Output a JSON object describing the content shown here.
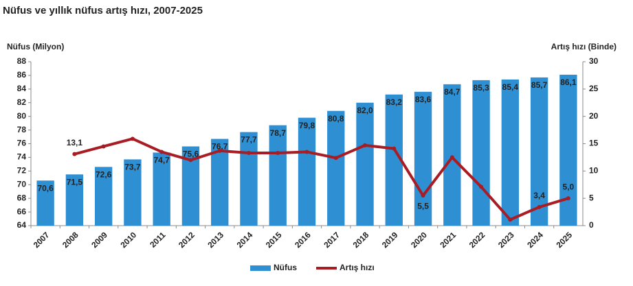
{
  "chart_data": {
    "type": "bar-line",
    "title": "Nüfus ve yıllık nüfus artış hızı, 2007-2025",
    "y_label": "Nüfus (Milyon)",
    "y2_label": "Artış hızı (Binde)",
    "categories": [
      "2007",
      "2008",
      "2009",
      "2010",
      "2011",
      "2012",
      "2013",
      "2014",
      "2015",
      "2016",
      "2017",
      "2018",
      "2019",
      "2020",
      "2021",
      "2022",
      "2023",
      "2024",
      "2025"
    ],
    "series": [
      {
        "name": "Nüfus",
        "type": "bar",
        "color": "#2f8fd3",
        "values": [
          70.6,
          71.5,
          72.6,
          73.7,
          74.7,
          75.6,
          76.7,
          77.7,
          78.7,
          79.8,
          80.8,
          82.0,
          83.2,
          83.6,
          84.7,
          85.3,
          85.4,
          85.7,
          86.1
        ],
        "value_labels": [
          "70,6",
          "71,5",
          "72,6",
          "73,7",
          "74,7",
          "75,6",
          "76,7",
          "77,7",
          "78,7",
          "79,8",
          "80,8",
          "82,0",
          "83,2",
          "83,6",
          "84,7",
          "85,3",
          "85,4",
          "85,7",
          "86,1"
        ]
      },
      {
        "name": "Artış hızı",
        "type": "line",
        "axis": "y2",
        "color": "#a81c24",
        "values": [
          null,
          13.1,
          14.5,
          15.9,
          13.5,
          12.0,
          13.7,
          13.3,
          13.3,
          13.5,
          12.4,
          14.7,
          14.1,
          5.5,
          12.5,
          7.1,
          1.1,
          3.4,
          5.0
        ],
        "value_labels": [
          null,
          "13,1",
          null,
          null,
          null,
          null,
          null,
          null,
          null,
          null,
          null,
          null,
          null,
          "5,5",
          null,
          null,
          null,
          "3,4",
          "5,0"
        ]
      }
    ],
    "ylim": [
      64,
      88
    ],
    "yticks": [
      64,
      66,
      68,
      70,
      72,
      74,
      76,
      78,
      80,
      82,
      84,
      86,
      88
    ],
    "y2lim": [
      0,
      30
    ],
    "y2ticks": [
      0,
      5,
      10,
      15,
      20,
      25,
      30
    ],
    "legend": "bottom"
  }
}
